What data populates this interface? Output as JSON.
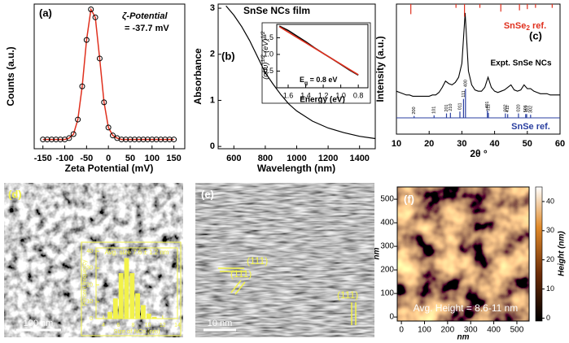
{
  "chart_data": [
    {
      "type": "scatter",
      "panel_label": "(a)",
      "xlabel": "Zeta Potential (mV)",
      "ylabel": "Counts (a.u.)",
      "annotations": [
        "ζ-Potential",
        "= -37.7 mV"
      ],
      "x": [
        -150,
        -140,
        -130,
        -120,
        -110,
        -100,
        -90,
        -80,
        -70,
        -60,
        -50,
        -40,
        -30,
        -20,
        -10,
        0,
        10,
        20,
        30,
        40,
        50,
        60,
        70,
        80,
        90,
        100,
        110,
        120,
        130,
        140,
        150
      ],
      "series": [
        {
          "color": "#000000",
          "fit_color": "#e0301e",
          "values": [
            0,
            0,
            0,
            0,
            0,
            0,
            0.01,
            0.04,
            0.15,
            0.4,
            0.75,
            0.98,
            0.92,
            0.61,
            0.28,
            0.09,
            0.03,
            0.01,
            0,
            0,
            0,
            0,
            0,
            0,
            0,
            0,
            0,
            0,
            0,
            0,
            0
          ]
        }
      ],
      "xlim": [
        -170,
        175
      ],
      "ylim": [
        -0.07,
        1.02
      ],
      "xticks": [
        -150,
        -100,
        -50,
        0,
        50,
        100,
        150
      ]
    },
    {
      "type": "line",
      "panel_label": "(b)",
      "title": "SnSe NCs film",
      "xlabel": "Wavelength (nm)",
      "ylabel": "Absorbance",
      "x": [
        550,
        600,
        650,
        700,
        750,
        800,
        850,
        900,
        950,
        1000,
        1100,
        1200,
        1300,
        1400,
        1500
      ],
      "series": [
        {
          "color": "#000000",
          "values": [
            3.05,
            2.85,
            2.6,
            2.3,
            1.95,
            1.6,
            1.35,
            1.12,
            0.92,
            0.77,
            0.55,
            0.4,
            0.3,
            0.22,
            0.17
          ]
        }
      ],
      "xlim": [
        500,
        1500
      ],
      "ylim": [
        -0.05,
        3.09
      ],
      "xticks": [
        600,
        800,
        1000,
        1200,
        1400
      ],
      "yticks": [
        0,
        1,
        2,
        3
      ]
    },
    {
      "type": "line",
      "xlabel": "Energy (eV)",
      "ylabel_parts": [
        "(αhυ)",
        "1/2",
        " (eV)",
        "1/2"
      ],
      "eg_parts": [
        "E",
        "g",
        " = 0.8 eV"
      ],
      "x": [
        1.7,
        1.6,
        1.5,
        1.4,
        1.3,
        1.2,
        1.1,
        1.0,
        0.9,
        0.8
      ],
      "series": [
        {
          "color": "#000000",
          "values": [
            1.85,
            1.72,
            1.55,
            1.38,
            1.2,
            1.03,
            0.87,
            0.7,
            0.53,
            0.38
          ]
        },
        {
          "color": "#e0301e",
          "values": [
            1.83,
            1.67,
            1.51,
            1.35,
            1.19,
            1.03,
            0.87,
            0.71,
            0.55,
            0.39
          ]
        }
      ],
      "xlim": [
        1.73,
        0.69
      ],
      "ylim": [
        0,
        1.9
      ],
      "xticks": [
        1.6,
        1.4,
        1.2,
        {
          "value": 1.0,
          "label": "1.0"
        },
        0.8
      ],
      "yticks": [
        0.5,
        {
          "value": 1.0,
          "label": "1.0"
        },
        1.5
      ]
    },
    {
      "type": "xrd",
      "panel_label": "(c)",
      "xlabel": "2θ °",
      "ylabel": "Intensity (a.u.)",
      "x": [
        10,
        11,
        12,
        13,
        14,
        15,
        16,
        17,
        18,
        19,
        20,
        21,
        22,
        23,
        24,
        25,
        26,
        27,
        28,
        29,
        30,
        31,
        32,
        33,
        34,
        35,
        36,
        37,
        38,
        39,
        40,
        41,
        42,
        43,
        44,
        45,
        46,
        47,
        48,
        49,
        50,
        51,
        52,
        53,
        54,
        55,
        56,
        57,
        58,
        59,
        60
      ],
      "series": [
        {
          "name": "Expt. SnSe NCs",
          "color": "#000000",
          "values": [
            3.4,
            3.3,
            3.2,
            3.1,
            3.1,
            3.0,
            3.0,
            3.0,
            3.0,
            3.0,
            3.0,
            3.1,
            3.1,
            3.3,
            3.7,
            4.2,
            4.0,
            3.9,
            4.1,
            4.5,
            5.6,
            9.6,
            5.0,
            3.9,
            3.5,
            3.4,
            3.4,
            3.7,
            4.5,
            3.7,
            3.4,
            3.3,
            3.4,
            3.5,
            3.7,
            3.9,
            3.5,
            3.4,
            3.5,
            3.9,
            3.6,
            3.6,
            3.4,
            3.3,
            3.2,
            3.2,
            3.2,
            3.1,
            3.1,
            3.1,
            3.1
          ]
        }
      ],
      "ref_top": {
        "name_parts": [
          "SnSe",
          "2",
          " ref."
        ],
        "color": "#e0301e",
        "positions": [
          14.4,
          28.2,
          30.8,
          35.5,
          41.9,
          47.6,
          50.0,
          52.5,
          57.6
        ],
        "values": [
          0.8,
          0.3,
          1.0,
          0.3,
          0.6,
          0.5,
          0.4,
          0.3,
          0.3
        ]
      },
      "ref_bottom": {
        "name": "SnSe ref.",
        "color": "#2a3fa0",
        "positions": [
          15.4,
          21.5,
          25.3,
          26.5,
          29.4,
          30.5,
          31.1,
          37.8,
          38.1,
          43.3,
          44.0,
          47.3,
          49.5,
          49.8,
          51.0
        ],
        "values": [
          0.15,
          0.2,
          0.35,
          0.4,
          0.5,
          1.5,
          2.3,
          0.6,
          0.4,
          0.35,
          0.3,
          0.35,
          0.3,
          0.3,
          0.25
        ],
        "labels": [
          "200",
          "101",
          "201",
          "210",
          "011",
          "111",
          "400",
          "401",
          "311",
          "002",
          "411",
          "020",
          "501",
          "112",
          "302"
        ]
      },
      "xlim": [
        10,
        60
      ],
      "ylim": [
        0,
        10.3
      ],
      "xticks": [
        10,
        20,
        30,
        40,
        50,
        60
      ]
    },
    {
      "type": "histogram",
      "title": "Avg. size 7.6 ± 1.2 nm",
      "xlabel": "Size of NCs (nm)",
      "ylabel": "Percent frequency",
      "bins": [
        4.5,
        5.25,
        6,
        6.75,
        7.5,
        8.25,
        9,
        9.75,
        10.5,
        11.25
      ],
      "values": [
        4,
        12,
        27,
        36,
        27,
        15,
        8,
        3,
        1
      ],
      "color": "#f2f24a",
      "xlim": [
        3,
        14
      ],
      "ylim": [
        0,
        42
      ],
      "xticks": [
        4,
        6,
        8,
        10,
        12,
        14
      ],
      "yticks": [
        0,
        10,
        20,
        30,
        40
      ]
    },
    {
      "type": "image",
      "panel_label": "(f)",
      "annotation": "Avg. Height = 8.6-11 nm",
      "xlabel": "nm",
      "ylabel": "nm",
      "xlim": [
        -18,
        553
      ],
      "ylim": [
        -17,
        552
      ],
      "xticks": [
        0,
        100,
        200,
        300,
        400,
        500
      ],
      "yticks": [
        0,
        100,
        200,
        300,
        400,
        500
      ],
      "colorbar": {
        "label": "Height (nm)",
        "lim": [
          -1,
          45
        ],
        "ticks": [
          0,
          10,
          20,
          30,
          40
        ]
      }
    }
  ],
  "panels": {
    "d": {
      "label": "(d)",
      "scale_bar": "100 nm"
    },
    "e": {
      "label": "(e)",
      "planes": [
        "(111)",
        "(111)",
        "(111)"
      ],
      "scale_bar": "10 nm"
    }
  }
}
